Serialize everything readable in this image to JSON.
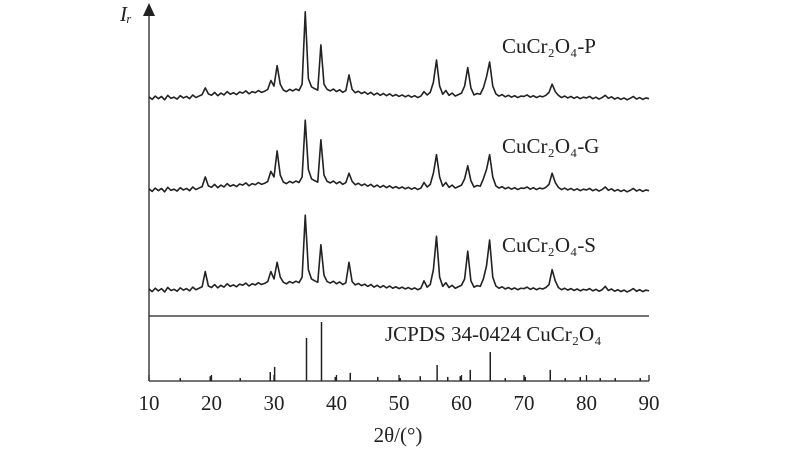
{
  "chart_data": {
    "type": "line",
    "y_label": "Iᵣ",
    "x_label": "2θ/(°)",
    "xlim": [
      10,
      90
    ],
    "xticks": [
      10,
      20,
      30,
      40,
      50,
      60,
      70,
      80,
      90
    ],
    "ylim": [
      0,
      100
    ],
    "x": [
      10,
      10.5,
      11,
      11.5,
      12,
      12.5,
      13,
      13.5,
      14,
      14.5,
      15,
      15.5,
      16,
      16.5,
      17,
      17.5,
      18,
      18.5,
      19,
      19.5,
      20,
      20.5,
      21,
      21.5,
      22,
      22.5,
      23,
      23.5,
      24,
      24.5,
      25,
      25.5,
      26,
      26.5,
      27,
      27.5,
      28,
      28.5,
      29,
      29.5,
      30,
      30.5,
      31,
      31.5,
      32,
      32.5,
      33,
      33.5,
      34,
      34.5,
      35,
      35.5,
      36,
      36.5,
      37,
      37.5,
      38,
      38.5,
      39,
      39.5,
      40,
      40.5,
      41,
      41.5,
      42,
      42.5,
      43,
      43.5,
      44,
      44.5,
      45,
      45.5,
      46,
      46.5,
      47,
      47.5,
      48,
      48.5,
      49,
      49.5,
      50,
      50.5,
      51,
      51.5,
      52,
      52.5,
      53,
      53.5,
      54,
      54.5,
      55,
      55.5,
      56,
      56.5,
      57,
      57.5,
      58,
      58.5,
      59,
      59.5,
      60,
      60.5,
      61,
      61.5,
      62,
      62.5,
      63,
      63.5,
      64,
      64.5,
      65,
      65.5,
      66,
      66.5,
      67,
      67.5,
      68,
      68.5,
      69,
      69.5,
      70,
      70.5,
      71,
      71.5,
      72,
      72.5,
      73,
      73.5,
      74,
      74.5,
      75,
      75.5,
      76,
      76.5,
      77,
      77.5,
      78,
      78.5,
      79,
      79.5,
      80,
      80.5,
      81,
      81.5,
      82,
      82.5,
      83,
      83.5,
      84,
      84.5,
      85,
      85.5,
      86,
      86.5,
      87,
      87.5,
      88,
      88.5,
      89,
      89.5,
      90
    ],
    "series": [
      {
        "name": "CuCr₂O₄-P",
        "color": "#222222",
        "values": [
          76.6,
          75.9,
          76.8,
          76.1,
          76.7,
          75.8,
          77.0,
          76.2,
          76.5,
          76.0,
          76.9,
          76.3,
          76.7,
          76.1,
          77.1,
          76.4,
          76.8,
          77.2,
          79.0,
          77.4,
          77.0,
          77.8,
          76.9,
          77.6,
          77.1,
          78.0,
          77.3,
          77.7,
          77.2,
          77.9,
          77.6,
          78.2,
          77.4,
          78.0,
          77.7,
          78.3,
          77.8,
          78.1,
          78.6,
          81.0,
          79.5,
          85.0,
          80.0,
          78.4,
          78.0,
          78.6,
          78.2,
          78.7,
          78.3,
          80.0,
          99.5,
          81.5,
          79.3,
          78.8,
          78.4,
          90.6,
          80.0,
          78.6,
          78.2,
          78.7,
          78.0,
          78.5,
          77.8,
          78.3,
          82.5,
          78.6,
          77.7,
          78.1,
          77.5,
          77.9,
          77.3,
          77.8,
          77.1,
          77.6,
          77.0,
          77.5,
          76.9,
          77.4,
          76.8,
          77.2,
          76.7,
          77.1,
          76.6,
          77.0,
          76.5,
          76.9,
          76.4,
          76.8,
          78.0,
          77.1,
          77.8,
          80.5,
          86.5,
          79.5,
          77.3,
          78.3,
          77.0,
          77.6,
          76.8,
          77.2,
          77.6,
          79.5,
          84.5,
          79.0,
          77.1,
          77.5,
          77.3,
          79.0,
          82.0,
          86.0,
          79.5,
          77.4,
          76.8,
          77.2,
          76.6,
          77.0,
          76.5,
          76.9,
          76.4,
          76.8,
          76.7,
          77.1,
          76.5,
          76.9,
          76.4,
          76.8,
          76.6,
          77.0,
          77.8,
          80.0,
          78.0,
          77.0,
          76.4,
          76.8,
          76.3,
          76.7,
          76.2,
          76.6,
          76.1,
          76.5,
          76.3,
          76.7,
          76.1,
          76.5,
          76.0,
          76.4,
          77.0,
          76.2,
          76.6,
          76.0,
          76.4,
          75.9,
          76.3,
          75.8,
          76.2,
          76.7,
          76.0,
          76.4,
          75.9,
          76.3,
          76.1
        ]
      },
      {
        "name": "CuCr₂O₄-G",
        "color": "#222222",
        "values": [
          51.8,
          51.1,
          52.0,
          51.3,
          51.9,
          51.0,
          52.2,
          51.4,
          51.7,
          51.2,
          52.1,
          51.5,
          51.9,
          51.3,
          52.3,
          51.6,
          52.0,
          52.4,
          55.0,
          52.6,
          52.2,
          53.0,
          52.1,
          52.8,
          52.3,
          53.2,
          52.5,
          52.9,
          52.4,
          53.1,
          52.8,
          53.4,
          52.6,
          53.2,
          52.9,
          53.5,
          53.0,
          53.3,
          53.8,
          56.5,
          55.0,
          62.0,
          55.5,
          53.6,
          53.2,
          53.8,
          53.4,
          53.9,
          53.5,
          55.0,
          70.3,
          57.0,
          54.5,
          54.0,
          53.6,
          65.0,
          55.5,
          53.8,
          53.4,
          53.9,
          53.2,
          53.7,
          53.0,
          53.5,
          56.0,
          53.8,
          52.9,
          53.3,
          52.7,
          53.1,
          52.5,
          53.0,
          52.3,
          52.8,
          52.2,
          52.7,
          52.1,
          52.6,
          52.0,
          52.4,
          51.9,
          52.3,
          51.8,
          52.2,
          51.7,
          52.1,
          51.6,
          52.0,
          53.5,
          52.3,
          53.0,
          56.0,
          61.0,
          55.0,
          52.5,
          53.5,
          52.2,
          52.8,
          52.0,
          52.4,
          52.8,
          54.5,
          58.0,
          54.0,
          52.3,
          52.7,
          52.5,
          54.5,
          57.0,
          61.0,
          55.0,
          52.6,
          52.0,
          52.4,
          51.8,
          52.2,
          51.7,
          52.1,
          51.6,
          52.0,
          51.9,
          52.3,
          51.7,
          52.1,
          51.6,
          52.0,
          51.8,
          52.2,
          53.0,
          56.0,
          53.5,
          52.2,
          51.6,
          52.0,
          51.5,
          51.9,
          51.4,
          51.8,
          51.3,
          51.7,
          51.5,
          51.9,
          51.3,
          51.7,
          51.2,
          51.6,
          52.3,
          51.4,
          51.8,
          51.2,
          51.6,
          51.1,
          51.5,
          51.0,
          51.4,
          51.9,
          51.2,
          51.6,
          51.1,
          51.5,
          51.3
        ]
      },
      {
        "name": "CuCr₂O₄-S",
        "color": "#222222",
        "values": [
          24.8,
          24.1,
          25.0,
          24.3,
          24.9,
          24.0,
          25.2,
          24.4,
          24.7,
          24.2,
          25.1,
          24.5,
          24.9,
          24.3,
          25.3,
          24.6,
          25.0,
          25.4,
          29.5,
          25.6,
          25.2,
          26.0,
          25.1,
          25.8,
          25.3,
          26.2,
          25.5,
          25.9,
          25.4,
          26.1,
          25.8,
          26.4,
          25.6,
          26.2,
          25.9,
          26.5,
          26.0,
          26.3,
          26.8,
          29.5,
          27.5,
          32.0,
          28.0,
          26.6,
          26.2,
          26.8,
          26.4,
          26.9,
          26.5,
          28.0,
          44.7,
          30.0,
          27.5,
          27.0,
          26.6,
          36.7,
          28.5,
          26.8,
          26.4,
          26.9,
          26.2,
          26.7,
          26.0,
          26.5,
          32.0,
          26.8,
          25.9,
          26.3,
          25.7,
          26.1,
          25.5,
          26.0,
          25.3,
          25.8,
          25.2,
          25.7,
          25.1,
          25.6,
          25.0,
          25.4,
          24.9,
          25.3,
          24.8,
          25.2,
          24.7,
          25.1,
          24.6,
          25.0,
          27.0,
          25.3,
          26.0,
          30.0,
          39.0,
          28.0,
          25.5,
          26.5,
          25.2,
          25.8,
          25.0,
          25.4,
          25.8,
          27.5,
          35.0,
          27.0,
          25.3,
          25.7,
          25.5,
          27.5,
          31.0,
          38.0,
          28.0,
          25.6,
          25.0,
          25.4,
          24.8,
          25.2,
          24.7,
          25.1,
          24.6,
          25.0,
          24.9,
          25.3,
          24.7,
          25.1,
          24.6,
          25.0,
          24.8,
          25.2,
          26.0,
          30.0,
          27.0,
          25.2,
          24.6,
          25.0,
          24.5,
          24.9,
          24.4,
          24.8,
          24.3,
          24.7,
          24.5,
          24.9,
          24.3,
          24.7,
          24.2,
          24.6,
          25.5,
          24.4,
          24.8,
          24.2,
          24.6,
          24.1,
          24.5,
          24.0,
          24.4,
          24.9,
          24.2,
          24.6,
          24.1,
          24.5,
          24.3
        ]
      }
    ],
    "reference": {
      "name": "JCPDS 34-0424 CuCr₂O₄",
      "color": "#222222",
      "x": [
        15,
        19.8,
        24.6,
        29.4,
        30.1,
        35.2,
        37.6,
        39.8,
        42.2,
        46.6,
        50.2,
        53.4,
        56.1,
        57.8,
        59.8,
        61.4,
        64.6,
        67,
        70.2,
        74.2,
        76.6,
        79,
        82.2,
        84.6,
        88.6
      ],
      "values": [
        0.8,
        1.3,
        0.8,
        2.4,
        3.8,
        11.6,
        15.9,
        1.1,
        2.2,
        1.1,
        0.8,
        1.3,
        4.3,
        1.1,
        1.3,
        3,
        7.8,
        0.8,
        1.1,
        3,
        0.8,
        1.1,
        0.8,
        0.8,
        0.8
      ]
    }
  }
}
